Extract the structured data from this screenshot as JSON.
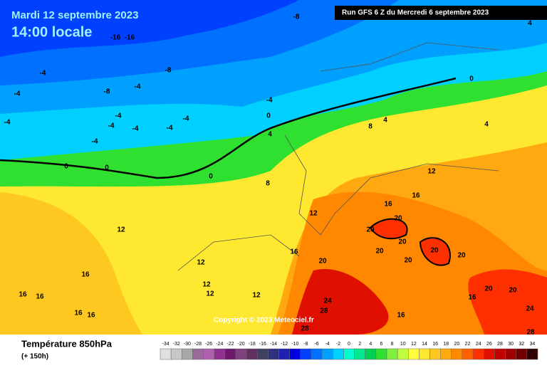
{
  "header": {
    "date": "Mardi 12 septembre 2023",
    "time": "14:00 locale",
    "run": "Run GFS 6 Z du Mercredi 6 septembre 2023"
  },
  "map": {
    "copyright": "Copyright © 2023 Meteociel.fr",
    "contour_labels": [
      -16,
      -16,
      -8,
      -8,
      -8,
      -4,
      -4,
      -4,
      -4,
      -4,
      -4,
      -4,
      -4,
      -4,
      -4,
      -4,
      0,
      0,
      0,
      0,
      0,
      4,
      4,
      4,
      4,
      8,
      8,
      12,
      12,
      12,
      12,
      12,
      12,
      12,
      16,
      16,
      16,
      16,
      16,
      16,
      16,
      16,
      16,
      16,
      20,
      20,
      20,
      20,
      20,
      20,
      20,
      20,
      20,
      20,
      24,
      24,
      28,
      28,
      28
    ]
  },
  "legend": {
    "title": "Température 850hPa",
    "lead": "(+ 150h)",
    "scale_ticks": [
      -34,
      -32,
      -30,
      -28,
      -26,
      -24,
      -22,
      -20,
      -18,
      -16,
      -14,
      -12,
      -10,
      -8,
      -6,
      -4,
      -2,
      0,
      2,
      4,
      6,
      8,
      10,
      12,
      14,
      16,
      18,
      20,
      22,
      24,
      26,
      28,
      30,
      32,
      34
    ],
    "scale_colors": [
      "#e0e0e0",
      "#c8c8c8",
      "#a8a8a8",
      "#9a6a9a",
      "#b060b0",
      "#903090",
      "#701870",
      "#804080",
      "#603060",
      "#404060",
      "#303080",
      "#2020b0",
      "#0000e0",
      "#0040ff",
      "#0070ff",
      "#00a0ff",
      "#00d0ff",
      "#00ffd0",
      "#00e890",
      "#00d050",
      "#30e030",
      "#80f040",
      "#c0ff40",
      "#ffff40",
      "#ffe830",
      "#ffc820",
      "#ffa810",
      "#ff8800",
      "#ff6000",
      "#ff3000",
      "#e01000",
      "#c00000",
      "#a00000",
      "#700000",
      "#300000"
    ]
  }
}
